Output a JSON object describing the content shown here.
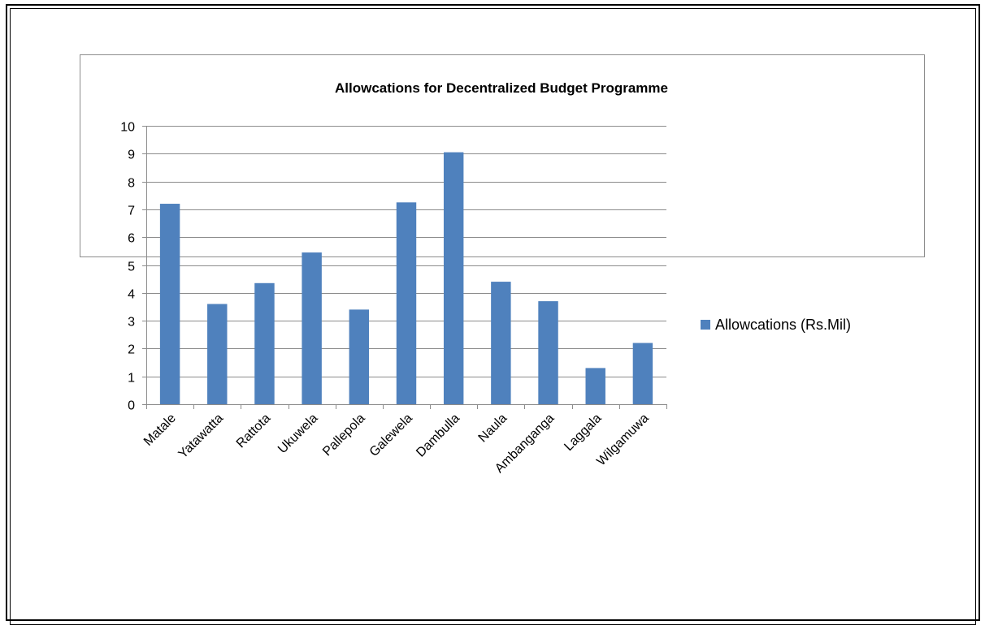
{
  "chart_data": {
    "type": "bar",
    "title": "Allowcations for Decentralized Budget Programme",
    "categories": [
      "Matale",
      "Yatawatta",
      "Rattota",
      "Ukuwela",
      "Pallepola",
      "Galewela",
      "Dambulla",
      "Naula",
      "Ambanganga",
      "Laggala",
      "Wilgamuwa"
    ],
    "series": [
      {
        "name": "Allowcations (Rs.Mil)",
        "values": [
          7.2,
          3.6,
          4.35,
          5.45,
          3.4,
          7.25,
          9.05,
          4.4,
          3.7,
          1.3,
          2.2
        ],
        "color": "#4f81bd"
      }
    ],
    "ylim": [
      0,
      10
    ],
    "yticks": [
      "0",
      "1",
      "2",
      "3",
      "4",
      "5",
      "6",
      "7",
      "8",
      "9",
      "10"
    ],
    "grid": true,
    "legend_position": "right",
    "xlabel": "",
    "ylabel": ""
  }
}
